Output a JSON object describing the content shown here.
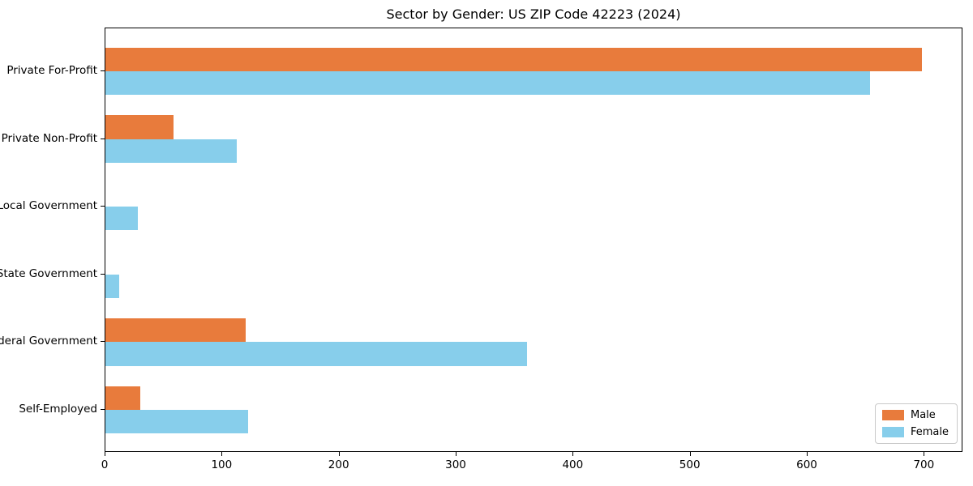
{
  "chart_data": {
    "type": "bar",
    "orientation": "horizontal",
    "title": "Sector by Gender: US ZIP Code 42223 (2024)",
    "categories": [
      "Private For-Profit",
      "Private Non-Profit",
      "Local Government",
      "State Government",
      "Federal Government",
      "Self-Employed"
    ],
    "series": [
      {
        "name": "Male",
        "color": "#E87B3C",
        "values": [
          698,
          58,
          0,
          0,
          120,
          30
        ]
      },
      {
        "name": "Female",
        "color": "#87CEEB",
        "values": [
          653,
          112,
          28,
          12,
          360,
          122
        ]
      }
    ],
    "xlabel": "",
    "ylabel": "",
    "xlim": [
      0,
      733
    ],
    "xticks": [
      "0",
      "100",
      "200",
      "300",
      "400",
      "500",
      "600",
      "700"
    ],
    "xtick_values": [
      0,
      100,
      200,
      300,
      400,
      500,
      600,
      700
    ],
    "legend_position": "lower right",
    "grid": false,
    "colors": {
      "axis": "#000000",
      "background": "#ffffff"
    }
  }
}
